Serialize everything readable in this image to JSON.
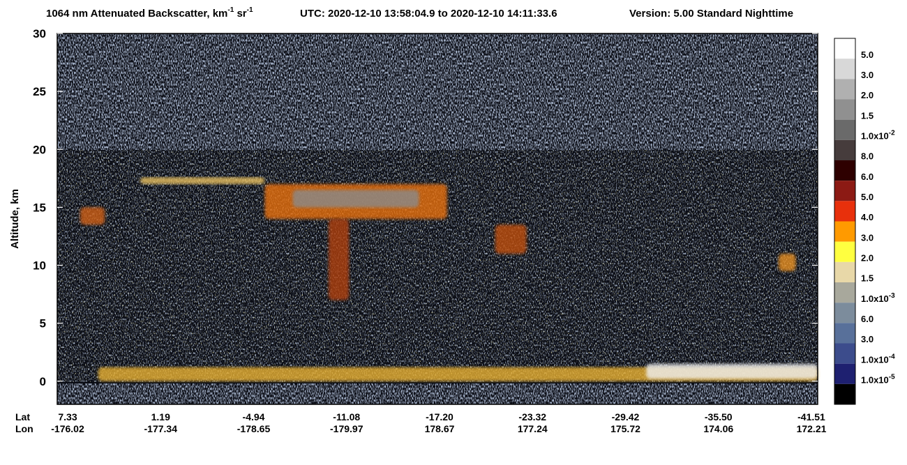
{
  "chart_data": {
    "type": "curtain",
    "title": {
      "parts": [
        {
          "text": "1064 nm Attenuated Backscatter, km"
        },
        {
          "text": "-1",
          "sup": true
        },
        {
          "text": " sr"
        },
        {
          "text": "-1",
          "sup": true
        }
      ],
      "utc": "UTC:  2020-12-10 13:58:04.9  to  2020-12-10 14:11:33.6",
      "version": "Version: 5.00  Standard  Nighttime"
    },
    "y_label": "Altitude, km",
    "ylim": [
      -2,
      30
    ],
    "yticks": [
      0,
      5,
      10,
      15,
      20,
      25,
      30
    ],
    "x_rows": [
      {
        "name": "Lat",
        "labels": [
          "7.33",
          "1.19",
          "-4.94",
          "-11.08",
          "-17.20",
          "-23.32",
          "-29.42",
          "-35.50",
          "-41.51"
        ]
      },
      {
        "name": "Lon",
        "labels": [
          "-176.02",
          "-177.34",
          "-178.65",
          "-179.97",
          "178.67",
          "177.24",
          "175.72",
          "174.06",
          "172.21"
        ]
      }
    ],
    "features": [
      {
        "lat": [
          -6.0,
          -17.7
        ],
        "alt": [
          14,
          17
        ],
        "color": "#e8700c"
      },
      {
        "lat": [
          -7.8,
          -15.9
        ],
        "alt": [
          15,
          16.5
        ],
        "color": "#8a8a8a"
      },
      {
        "lat": [
          -10.1,
          -11.4
        ],
        "alt": [
          7,
          14
        ],
        "color": "#b04010"
      },
      {
        "lat": [
          2.0,
          -6.0
        ],
        "alt": [
          17,
          17.6
        ],
        "color": "#e8c060"
      },
      {
        "lat": [
          -20.8,
          -22.8
        ],
        "alt": [
          11,
          13.5
        ],
        "color": "#c05010"
      },
      {
        "lat": [
          -39.0,
          -40.1
        ],
        "alt": [
          9.5,
          11
        ],
        "color": "#e89020"
      },
      {
        "lat": [
          5.85,
          4.28
        ],
        "alt": [
          13.5,
          15
        ],
        "color": "#d06018"
      },
      {
        "lat": [
          4.7,
          -41.51
        ],
        "alt": [
          0,
          1.2
        ],
        "color": "#e8b030"
      },
      {
        "lat": [
          -30.5,
          -41.51
        ],
        "alt": [
          0.2,
          1.5
        ],
        "color": "#f0f0f0"
      }
    ],
    "colorbar": {
      "colors": [
        "#ffffff",
        "#d8d8d8",
        "#b0b0b0",
        "#909090",
        "#6a6a6a",
        "#463c3c",
        "#2e0000",
        "#8c1a14",
        "#e8300c",
        "#ff9a00",
        "#ffff40",
        "#e8d8a8",
        "#a8a89c",
        "#7c8c9c",
        "#58709a",
        "#3c4c8c",
        "#1e2070",
        "#000000"
      ],
      "labels": [
        {
          "text": "5.0"
        },
        {
          "text": "3.0"
        },
        {
          "text": "2.0"
        },
        {
          "text": "1.5"
        },
        {
          "text": "1.0x10",
          "sup": "-2"
        },
        {
          "text": "8.0"
        },
        {
          "text": "6.0"
        },
        {
          "text": "5.0"
        },
        {
          "text": "4.0"
        },
        {
          "text": "3.0"
        },
        {
          "text": "2.0"
        },
        {
          "text": "1.5"
        },
        {
          "text": "1.0x10",
          "sup": "-3"
        },
        {
          "text": "6.0"
        },
        {
          "text": "3.0"
        },
        {
          "text": "1.0x10",
          "sup": "-4"
        },
        {
          "text": "1.0x10",
          "sup": "-5"
        }
      ]
    }
  }
}
